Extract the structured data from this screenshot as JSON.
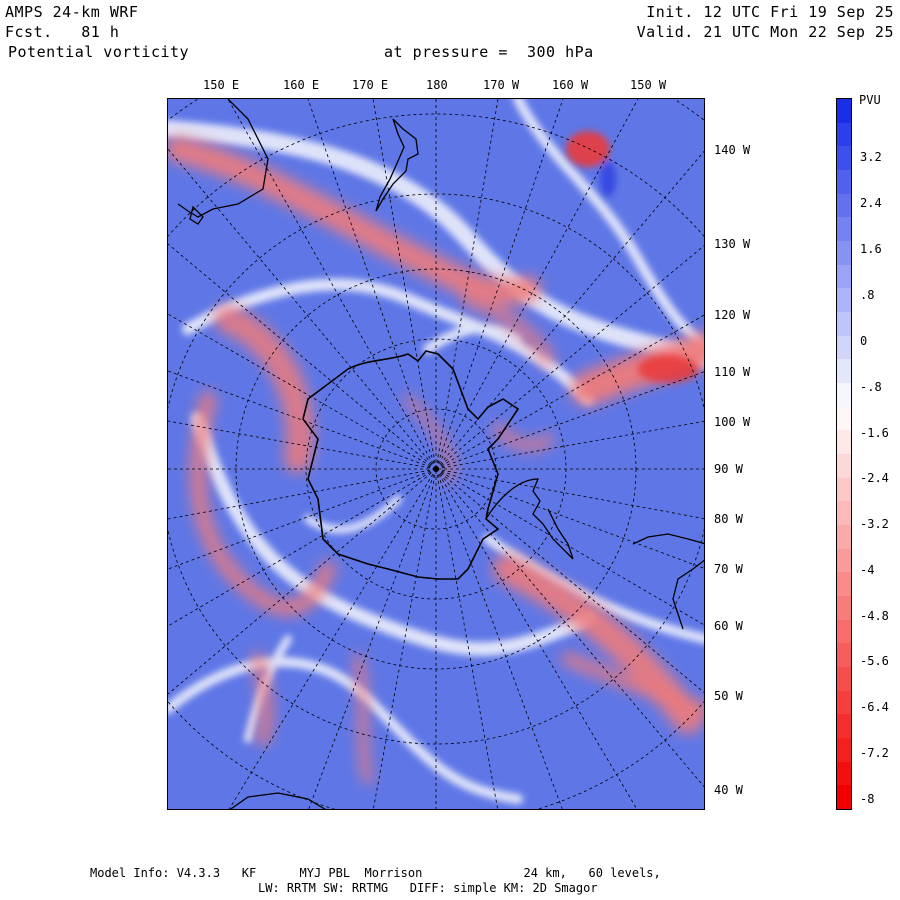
{
  "header": {
    "model": "AMPS 24-km WRF",
    "forecast": "Fcst.   81 h",
    "field": "Potential vorticity",
    "level": "at pressure =  300 hPa",
    "init": "Init. 12 UTC Fri 19 Sep 25",
    "valid": "Valid. 21 UTC Mon 22 Sep 25"
  },
  "top_lon_labels": [
    "150 E",
    "160 E",
    "170 E",
    "180",
    "170 W",
    "160 W",
    "150 W"
  ],
  "right_lon_labels": [
    "140 W",
    "130 W",
    "120 W",
    "110 W",
    "100 W",
    "90 W",
    "80 W",
    "70 W",
    "60 W",
    "50 W",
    "40 W"
  ],
  "colorbar": {
    "unit": "PVU",
    "tick_labels": [
      "3.2",
      "2.4",
      "1.6",
      ".8",
      "0",
      "-.8",
      "-1.6",
      "-2.4",
      "-3.2",
      "-4",
      "-4.8",
      "-5.6",
      "-6.4",
      "-7.2",
      "-8"
    ],
    "high_color": "#1a2ee8",
    "low_color": "#f20000"
  },
  "footer": {
    "line1": "Model Info: V4.3.3   KF      MYJ PBL  Morrison              24 km,   60 levels,",
    "line2": "LW: RRTM SW: RRTMG   DIFF: simple KM: 2D Smagor"
  }
}
